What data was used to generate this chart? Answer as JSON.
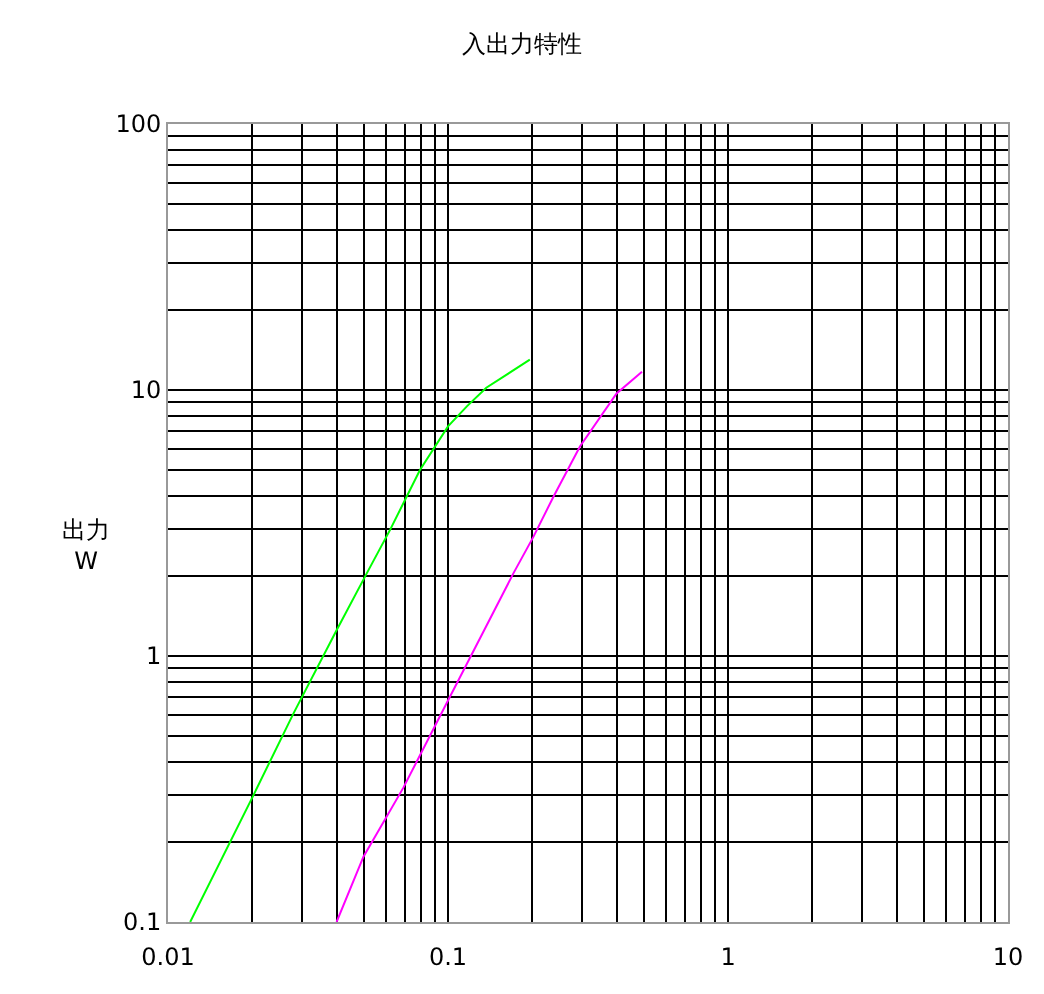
{
  "chart_data": {
    "type": "line",
    "title": "入出力特性",
    "ylabel": "出力\nW",
    "log": "xy",
    "grid": true,
    "marker": "none",
    "line_style": "solid",
    "xlim": [
      0.01,
      10
    ],
    "ylim": [
      0.1,
      100
    ],
    "xticks": [
      {
        "value": 0.01,
        "label": "0.01"
      },
      {
        "value": 0.02,
        "label": null
      },
      {
        "value": 0.03,
        "label": null
      },
      {
        "value": 0.04,
        "label": null
      },
      {
        "value": 0.05,
        "label": null
      },
      {
        "value": 0.06,
        "label": null
      },
      {
        "value": 0.07,
        "label": null
      },
      {
        "value": 0.08,
        "label": null
      },
      {
        "value": 0.09,
        "label": null
      },
      {
        "value": 0.1,
        "label": "0.1"
      },
      {
        "value": 0.2,
        "label": null
      },
      {
        "value": 0.3,
        "label": null
      },
      {
        "value": 0.4,
        "label": null
      },
      {
        "value": 0.5,
        "label": null
      },
      {
        "value": 0.6,
        "label": null
      },
      {
        "value": 0.7,
        "label": null
      },
      {
        "value": 0.8,
        "label": null
      },
      {
        "value": 0.9,
        "label": null
      },
      {
        "value": 1,
        "label": "1"
      },
      {
        "value": 2,
        "label": null
      },
      {
        "value": 3,
        "label": null
      },
      {
        "value": 4,
        "label": null
      },
      {
        "value": 5,
        "label": null
      },
      {
        "value": 6,
        "label": null
      },
      {
        "value": 7,
        "label": null
      },
      {
        "value": 8,
        "label": null
      },
      {
        "value": 9,
        "label": null
      },
      {
        "value": 10,
        "label": "10"
      }
    ],
    "yticks": [
      {
        "value": 0.1,
        "label": "0.1"
      },
      {
        "value": 0.2,
        "label": null
      },
      {
        "value": 0.3,
        "label": null
      },
      {
        "value": 0.4,
        "label": null
      },
      {
        "value": 0.5,
        "label": null
      },
      {
        "value": 0.6,
        "label": null
      },
      {
        "value": 0.7,
        "label": null
      },
      {
        "value": 0.8,
        "label": null
      },
      {
        "value": 0.9,
        "label": null
      },
      {
        "value": 1,
        "label": "1"
      },
      {
        "value": 2,
        "label": null
      },
      {
        "value": 3,
        "label": null
      },
      {
        "value": 4,
        "label": null
      },
      {
        "value": 5,
        "label": null
      },
      {
        "value": 6,
        "label": null
      },
      {
        "value": 7,
        "label": null
      },
      {
        "value": 8,
        "label": null
      },
      {
        "value": 9,
        "label": null
      },
      {
        "value": 10,
        "label": "10"
      },
      {
        "value": 20,
        "label": null
      },
      {
        "value": 30,
        "label": null
      },
      {
        "value": 40,
        "label": null
      },
      {
        "value": 50,
        "label": null
      },
      {
        "value": 60,
        "label": null
      },
      {
        "value": 70,
        "label": null
      },
      {
        "value": 80,
        "label": null
      },
      {
        "value": 90,
        "label": null
      },
      {
        "value": 100,
        "label": "100"
      }
    ],
    "series": [
      {
        "color": "#00ff00",
        "x": [
          0.012,
          0.0202,
          0.0281,
          0.04,
          0.0512,
          0.0621,
          0.0794,
          0.1,
          0.117,
          0.137,
          0.196
        ],
        "values": [
          0.1,
          0.3,
          0.61,
          1.25,
          2.04,
          2.98,
          5.0,
          7.3,
          8.7,
          10.2,
          13.0
        ]
      },
      {
        "color": "#ff00ff",
        "x": [
          0.04,
          0.0499,
          0.0693,
          0.1,
          0.171,
          0.202,
          0.238,
          0.296,
          0.4,
          0.493
        ],
        "values": [
          0.1,
          0.176,
          0.32,
          0.68,
          2.04,
          2.81,
          3.97,
          6.13,
          9.7,
          11.7
        ]
      }
    ]
  }
}
